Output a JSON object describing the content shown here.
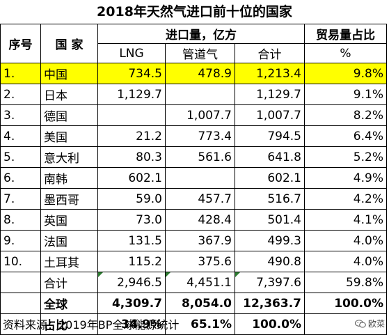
{
  "title": "2018年天然气进口前十位的国家",
  "headers": {
    "seq": "序号",
    "country": "国 家",
    "import_group": "进口量，亿方",
    "lng": "LNG",
    "pipeline": "管道气",
    "total": "合计",
    "share": "贸易量占比",
    "share_unit": "%"
  },
  "rows": [
    {
      "seq": "1.",
      "country": "中国",
      "lng": "734.5",
      "pipeline": "478.9",
      "total": "1,213.4",
      "share": "9.8%"
    },
    {
      "seq": "2.",
      "country": "日本",
      "lng": "1,129.7",
      "pipeline": "",
      "total": "1,129.7",
      "share": "9.1%"
    },
    {
      "seq": "3.",
      "country": "德国",
      "lng": "",
      "pipeline": "1,007.7",
      "total": "1,007.7",
      "share": "8.2%"
    },
    {
      "seq": "4.",
      "country": "美国",
      "lng": "21.2",
      "pipeline": "773.4",
      "total": "794.5",
      "share": "6.4%"
    },
    {
      "seq": "5.",
      "country": "意大利",
      "lng": "80.3",
      "pipeline": "561.6",
      "total": "641.8",
      "share": "5.2%"
    },
    {
      "seq": "6.",
      "country": "南韩",
      "lng": "602.1",
      "pipeline": "",
      "total": "602.1",
      "share": "4.9%"
    },
    {
      "seq": "7.",
      "country": "墨西哥",
      "lng": "59.0",
      "pipeline": "457.7",
      "total": "516.7",
      "share": "4.2%"
    },
    {
      "seq": "8.",
      "country": "英国",
      "lng": "73.0",
      "pipeline": "428.4",
      "total": "501.4",
      "share": "4.1%"
    },
    {
      "seq": "9.",
      "country": "法国",
      "lng": "131.5",
      "pipeline": "367.9",
      "total": "499.3",
      "share": "4.0%"
    },
    {
      "seq": "10.",
      "country": "土耳其",
      "lng": "115.2",
      "pipeline": "375.6",
      "total": "490.8",
      "share": "4.0%"
    }
  ],
  "subtotal": {
    "label": "合计",
    "lng": "2,946.5",
    "pipeline": "4,451.1",
    "total": "7,397.6",
    "share": "59.8%"
  },
  "global": {
    "label": "全球",
    "lng": "4,309.7",
    "pipeline": "8,054.0",
    "total": "12,363.7",
    "share": "100.0%"
  },
  "ratio": {
    "label": "占比",
    "lng": "34.9%",
    "pipeline": "65.1%",
    "total": "100.0%"
  },
  "source": "资料来源：2019年BP全球能源统计",
  "watermark": "欧菜",
  "colors": {
    "highlight": "#ffff00",
    "marker": "#2e7d32"
  }
}
